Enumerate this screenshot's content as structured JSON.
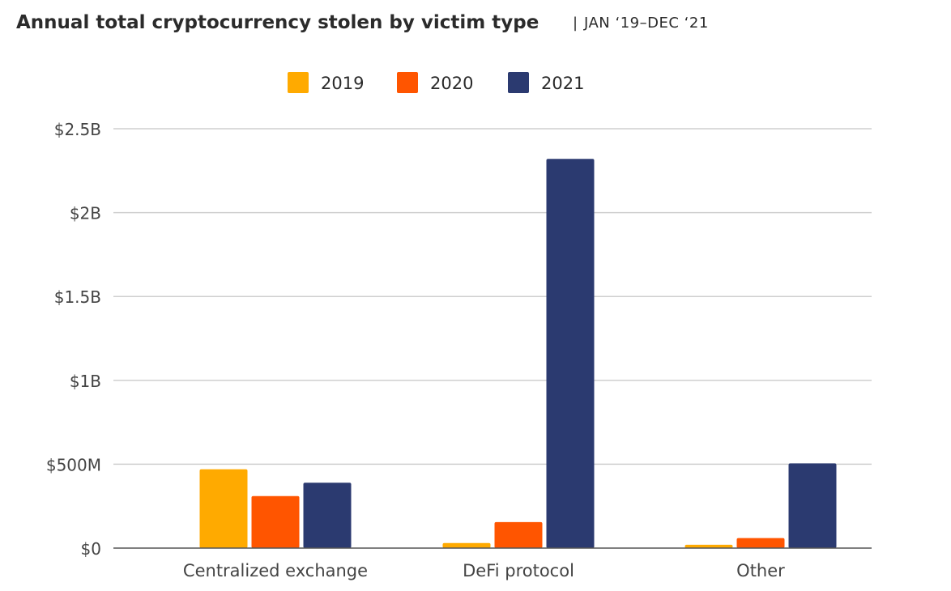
{
  "chart_data": {
    "type": "bar",
    "title": "Annual total cryptocurrency stolen by victim type",
    "subtitle": "JAN ‘19–DEC ‘21",
    "separator": "|",
    "categories": [
      "Centralized exchange",
      "DeFi protocol",
      "Other"
    ],
    "series": [
      {
        "name": "2019",
        "color": "#FFAA00",
        "values": [
          470,
          30,
          20
        ]
      },
      {
        "name": "2020",
        "color": "#FF5500",
        "values": [
          310,
          155,
          60
        ]
      },
      {
        "name": "2021",
        "color": "#2B3A70",
        "values": [
          390,
          2320,
          505
        ]
      }
    ],
    "y_unit": "millions USD",
    "ylim": [
      0,
      2500
    ],
    "yticks": [
      {
        "value": 0,
        "label": "$0"
      },
      {
        "value": 500,
        "label": "$500M"
      },
      {
        "value": 1000,
        "label": "$1B"
      },
      {
        "value": 1500,
        "label": "$1.5B"
      },
      {
        "value": 2000,
        "label": "$2B"
      },
      {
        "value": 2500,
        "label": "$2.5B"
      }
    ],
    "grid": true,
    "legend_position": "top-center"
  }
}
